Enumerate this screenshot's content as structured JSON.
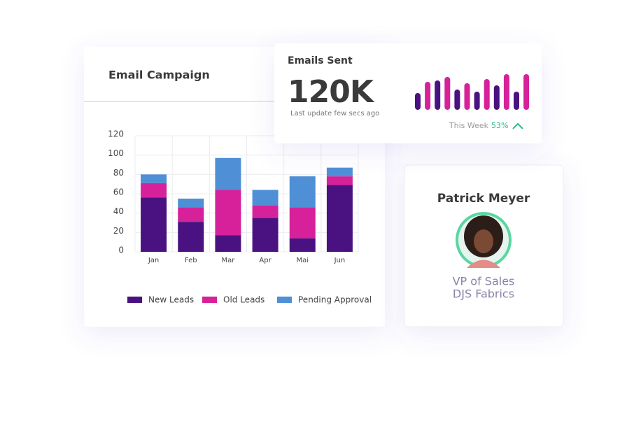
{
  "chart_data": [
    {
      "type": "stacked_bar",
      "title": "Email Campaign",
      "categories": [
        "Jan",
        "Feb",
        "Mar",
        "Apr",
        "Mai",
        "Jun"
      ],
      "series": [
        {
          "name": "New Leads",
          "color": "#4a1280",
          "values": [
            56,
            31,
            17,
            35,
            14,
            69
          ]
        },
        {
          "name": "Old Leads",
          "color": "#d6219a",
          "values": [
            15,
            15,
            47,
            13,
            32,
            9
          ]
        },
        {
          "name": "Pending Approval",
          "color": "#4f8fd6",
          "values": [
            9,
            9,
            33,
            16,
            32,
            9
          ]
        }
      ],
      "ylim": [
        0,
        120
      ],
      "yticks": [
        0,
        20,
        40,
        60,
        80,
        100,
        120
      ],
      "grid": true
    },
    {
      "type": "mini_bar",
      "title": "Emails Sent",
      "value_text": "120K",
      "subtitle": "Last update few secs ago",
      "period_label": "This Week",
      "change": "53%",
      "values": [
        24,
        40,
        42,
        47,
        29,
        38,
        26,
        44,
        35,
        51,
        26,
        51
      ],
      "colors": [
        "#4a1280",
        "#d6219a",
        "#4a1280",
        "#d6219a",
        "#4a1280",
        "#d6219a",
        "#4a1280",
        "#d6219a",
        "#4a1280",
        "#d6219a",
        "#4a1280",
        "#d6219a"
      ],
      "ylim": [
        0,
        55
      ]
    }
  ],
  "profile": {
    "name": "Patrick Meyer",
    "role": "VP of Sales",
    "company": "DJS Fabrics"
  }
}
